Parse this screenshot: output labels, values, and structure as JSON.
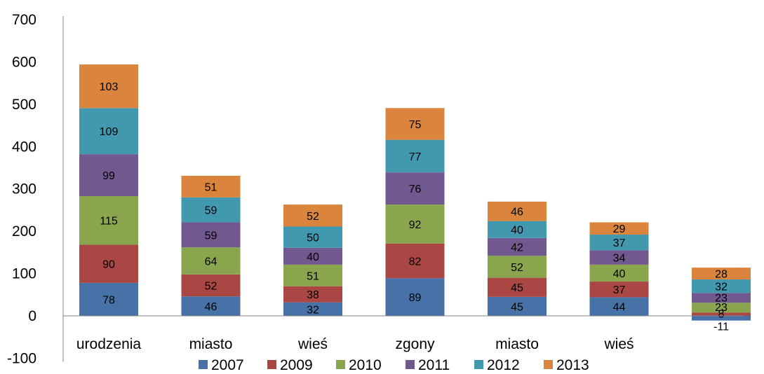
{
  "chart_data": {
    "type": "bar",
    "stacked": true,
    "categories": [
      "urodzenia",
      "miasto",
      "wieś",
      "zgony",
      "miasto",
      "wieś",
      ""
    ],
    "series": [
      {
        "name": "2007",
        "color": "#4672a8",
        "values": [
          78,
          46,
          32,
          89,
          45,
          44,
          -11
        ]
      },
      {
        "name": "2009",
        "color": "#aa4643",
        "values": [
          90,
          52,
          38,
          82,
          45,
          37,
          8
        ]
      },
      {
        "name": "2010",
        "color": "#89a54e",
        "values": [
          115,
          64,
          51,
          92,
          52,
          40,
          23
        ]
      },
      {
        "name": "2011",
        "color": "#71588f",
        "values": [
          99,
          59,
          40,
          76,
          42,
          34,
          23
        ]
      },
      {
        "name": "2012",
        "color": "#4198af",
        "values": [
          109,
          59,
          50,
          77,
          40,
          37,
          32
        ]
      },
      {
        "name": "2013",
        "color": "#db843d",
        "values": [
          103,
          51,
          52,
          75,
          46,
          29,
          28
        ]
      }
    ],
    "ylim": [
      -100,
      700
    ],
    "yticks": [
      -100,
      0,
      100,
      200,
      300,
      400,
      500,
      600,
      700
    ],
    "legend_position": "bottom",
    "grid": false,
    "title": "",
    "xlabel": "",
    "ylabel": ""
  }
}
